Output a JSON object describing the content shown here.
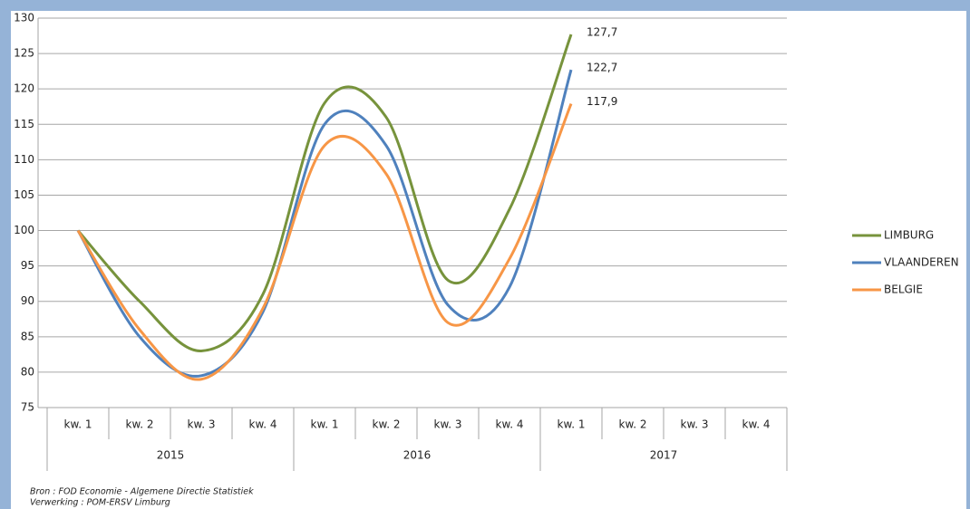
{
  "chart_data": {
    "type": "line",
    "category_groups": [
      {
        "name": "2015",
        "categories": [
          "kw. 1",
          "kw. 2",
          "kw. 3",
          "kw. 4"
        ]
      },
      {
        "name": "2016",
        "categories": [
          "kw. 1",
          "kw. 2",
          "kw. 3",
          "kw. 4"
        ]
      },
      {
        "name": "2017",
        "categories": [
          "kw. 1",
          "kw. 2",
          "kw. 3",
          "kw. 4"
        ]
      }
    ],
    "series": [
      {
        "name": "LIMBURG",
        "color": "#77933c",
        "values": [
          100,
          90,
          83,
          91,
          118,
          116,
          93,
          103,
          127.7,
          null,
          null,
          null
        ],
        "value_labels": [
          null,
          null,
          null,
          null,
          null,
          null,
          null,
          null,
          "127,7",
          null,
          null,
          null
        ]
      },
      {
        "name": "VLAANDEREN",
        "color": "#4f81bd",
        "values": [
          100,
          85,
          79.5,
          88.5,
          115,
          112,
          89.5,
          92,
          122.7,
          null,
          null,
          null
        ],
        "value_labels": [
          null,
          null,
          null,
          null,
          null,
          null,
          null,
          null,
          "122,7",
          null,
          null,
          null
        ]
      },
      {
        "name": "BELGIE",
        "color": "#f79646",
        "values": [
          100,
          86,
          79,
          89,
          112,
          108,
          87,
          96,
          117.9,
          null,
          null,
          null
        ],
        "value_labels": [
          null,
          null,
          null,
          null,
          null,
          null,
          null,
          null,
          "117,9",
          null,
          null,
          null
        ]
      }
    ],
    "ylim": [
      75,
      130
    ],
    "yticks": [
      75,
      80,
      85,
      90,
      95,
      100,
      105,
      110,
      115,
      120,
      125,
      130
    ],
    "grid": true,
    "smooth": true,
    "legend": "right",
    "notes": [
      "Bron : FOD Economie - Algemene Directie Statistiek",
      "Verwerking : POM-ERSV Limburg"
    ]
  }
}
